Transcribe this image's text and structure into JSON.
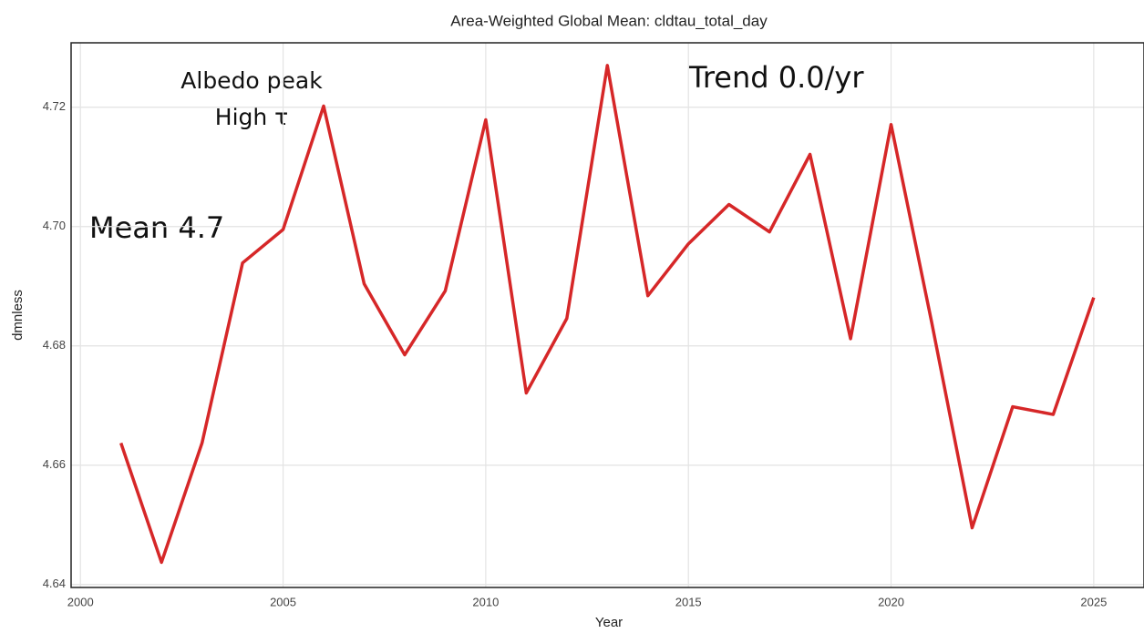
{
  "chart_data": {
    "type": "line",
    "title": "Area-Weighted Global Mean: cldtau_total_day",
    "x_label": "Year",
    "y_label": "dmnless",
    "annotations": [
      "Albedo peak",
      "High τ",
      "Mean 4.7",
      "Trend 0.0/yr"
    ],
    "x": [
      2001,
      2002,
      2003,
      2004,
      2005,
      2006,
      2007,
      2008,
      2009,
      2010,
      2011,
      2012,
      2013,
      2014,
      2015,
      2016,
      2017,
      2018,
      2019,
      2020,
      2021,
      2022,
      2023,
      2024,
      2025
    ],
    "series": [
      {
        "name": "cldtau_total_day",
        "color": "#d62728",
        "values": [
          4.6637,
          4.6437,
          4.6637,
          4.6939,
          4.6995,
          4.7202,
          4.6904,
          4.6785,
          4.6892,
          4.7179,
          4.6721,
          4.6846,
          4.727,
          4.6884,
          4.6971,
          4.7037,
          4.6991,
          4.7121,
          4.6812,
          4.7171,
          4.684,
          4.6495,
          4.6698,
          4.6685,
          4.6881
        ]
      }
    ],
    "xlim": [
      1999.77,
      2026.24
    ],
    "xticks": [
      2000,
      2005,
      2010,
      2015,
      2020,
      2025
    ],
    "ylim": [
      4.6395,
      4.7308
    ],
    "yticks": [
      {
        "value": 4.64,
        "label": "4.64"
      },
      {
        "value": 4.66,
        "label": "4.66"
      },
      {
        "value": 4.68,
        "label": "4.68"
      },
      {
        "value": 4.7,
        "label": "4.70"
      },
      {
        "value": 4.72,
        "label": "4.72"
      }
    ],
    "grid": true
  }
}
